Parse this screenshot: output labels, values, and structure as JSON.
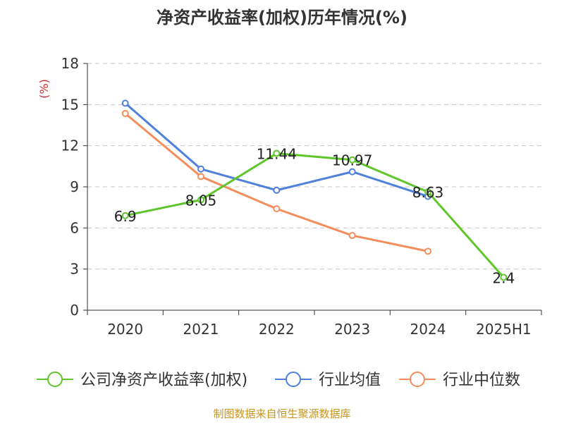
{
  "chart_data": {
    "type": "line",
    "title": "净资产收益率(加权)历年情况(%)",
    "ylabel": "(%)",
    "xlabel": "",
    "categories": [
      "2020",
      "2021",
      "2022",
      "2023",
      "2024",
      "2025H1"
    ],
    "yticks": [
      "0",
      "3",
      "6",
      "9",
      "12",
      "15",
      "18"
    ],
    "ylim": [
      0,
      18
    ],
    "grid": true,
    "legend_position": "bottom",
    "series": [
      {
        "name": "公司净资产收益率(加权)",
        "color": "#5ec52a",
        "values": [
          6.9,
          8.05,
          11.44,
          10.97,
          8.63,
          2.4
        ],
        "labels": [
          "6.9",
          "8.05",
          "11.44",
          "10.97",
          "8.63",
          "2.4"
        ]
      },
      {
        "name": "行业均值",
        "color": "#4f81dc",
        "values": [
          15.1,
          10.3,
          8.75,
          10.1,
          8.3,
          null
        ]
      },
      {
        "name": "行业中位数",
        "color": "#f58d5a",
        "values": [
          14.35,
          9.75,
          7.4,
          5.45,
          4.3,
          null
        ]
      }
    ]
  },
  "source": {
    "text": "制图数据来自恒生聚源数据库",
    "color": "#c8941e"
  },
  "ylabel_color": "#d42a2a"
}
